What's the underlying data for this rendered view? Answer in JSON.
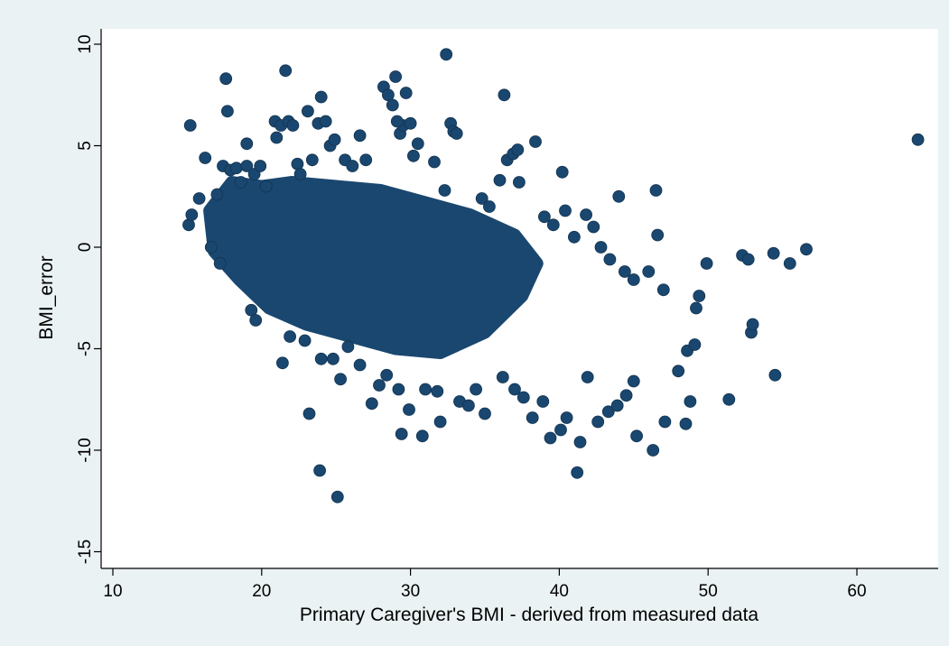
{
  "chart_data": {
    "type": "scatter",
    "title": "",
    "xlabel": "Primary Caregiver's BMI - derived from measured data",
    "ylabel": "BMI_error",
    "xlim": [
      10,
      65
    ],
    "ylim": [
      -16.5,
      10.5
    ],
    "xticks": [
      "10",
      "20",
      "30",
      "40",
      "50",
      "60"
    ],
    "yticks": [
      "10",
      "5",
      "0",
      "-5",
      "-10",
      "-15"
    ],
    "grid": false,
    "legend": "none",
    "colors": {
      "marker": "#1a476f",
      "plot_bg": "#ffffff",
      "page_bg": "#eaf2f3"
    },
    "dense_region": [
      [
        16.5,
        1.8
      ],
      [
        18.0,
        3.2
      ],
      [
        20.0,
        3.0
      ],
      [
        22.0,
        3.2
      ],
      [
        25.0,
        3.0
      ],
      [
        28.0,
        2.8
      ],
      [
        31.0,
        2.2
      ],
      [
        34.0,
        1.6
      ],
      [
        37.0,
        0.6
      ],
      [
        38.5,
        -0.8
      ],
      [
        37.5,
        -2.4
      ],
      [
        35.0,
        -4.2
      ],
      [
        32.0,
        -5.2
      ],
      [
        29.0,
        -5.0
      ],
      [
        26.0,
        -4.4
      ],
      [
        23.0,
        -3.8
      ],
      [
        20.5,
        -3.0
      ],
      [
        18.5,
        -1.6
      ],
      [
        16.8,
        -0.2
      ]
    ],
    "points": [
      [
        15.2,
        6.0
      ],
      [
        15.1,
        1.1
      ],
      [
        15.3,
        1.6
      ],
      [
        15.8,
        2.4
      ],
      [
        16.2,
        4.4
      ],
      [
        16.6,
        0.0
      ],
      [
        17.0,
        2.6
      ],
      [
        17.2,
        -0.8
      ],
      [
        17.6,
        8.3
      ],
      [
        17.7,
        6.7
      ],
      [
        17.4,
        4.0
      ],
      [
        17.9,
        3.8
      ],
      [
        18.3,
        3.9
      ],
      [
        18.6,
        3.2
      ],
      [
        19.0,
        4.0
      ],
      [
        19.0,
        5.1
      ],
      [
        19.5,
        3.6
      ],
      [
        19.9,
        4.0
      ],
      [
        19.3,
        -3.1
      ],
      [
        19.6,
        -3.6
      ],
      [
        20.3,
        3.0
      ],
      [
        21.0,
        5.4
      ],
      [
        20.9,
        6.2
      ],
      [
        21.3,
        6.0
      ],
      [
        21.6,
        8.7
      ],
      [
        21.8,
        6.2
      ],
      [
        22.1,
        6.0
      ],
      [
        21.4,
        -5.7
      ],
      [
        21.9,
        -4.4
      ],
      [
        22.4,
        4.1
      ],
      [
        22.6,
        3.6
      ],
      [
        23.1,
        6.7
      ],
      [
        23.4,
        4.3
      ],
      [
        23.8,
        6.1
      ],
      [
        24.0,
        7.4
      ],
      [
        24.3,
        6.2
      ],
      [
        22.9,
        -4.6
      ],
      [
        23.2,
        -8.2
      ],
      [
        23.9,
        -11.0
      ],
      [
        24.0,
        -5.5
      ],
      [
        24.6,
        5.0
      ],
      [
        24.9,
        5.3
      ],
      [
        25.6,
        4.3
      ],
      [
        26.1,
        4.0
      ],
      [
        26.6,
        5.5
      ],
      [
        27.0,
        4.3
      ],
      [
        25.1,
        -12.3
      ],
      [
        25.3,
        -6.5
      ],
      [
        24.8,
        -5.5
      ],
      [
        25.8,
        -4.9
      ],
      [
        26.6,
        -5.8
      ],
      [
        27.4,
        -7.7
      ],
      [
        27.9,
        -6.8
      ],
      [
        28.2,
        7.9
      ],
      [
        28.5,
        7.5
      ],
      [
        29.0,
        8.4
      ],
      [
        28.8,
        7.0
      ],
      [
        29.3,
        5.6
      ],
      [
        29.5,
        6.0
      ],
      [
        29.7,
        7.6
      ],
      [
        29.1,
        6.2
      ],
      [
        30.0,
        6.1
      ],
      [
        30.5,
        5.1
      ],
      [
        30.2,
        4.5
      ],
      [
        28.4,
        -6.3
      ],
      [
        29.2,
        -7.0
      ],
      [
        29.4,
        -9.2
      ],
      [
        29.9,
        -8.0
      ],
      [
        30.8,
        -9.3
      ],
      [
        31.0,
        -7.0
      ],
      [
        31.6,
        4.2
      ],
      [
        32.3,
        2.8
      ],
      [
        32.4,
        9.5
      ],
      [
        32.7,
        6.1
      ],
      [
        32.9,
        5.7
      ],
      [
        33.1,
        5.6
      ],
      [
        32.0,
        -8.6
      ],
      [
        31.8,
        -7.1
      ],
      [
        33.3,
        -7.6
      ],
      [
        33.9,
        -7.8
      ],
      [
        34.4,
        -7.0
      ],
      [
        35.0,
        -8.2
      ],
      [
        34.8,
        2.4
      ],
      [
        35.3,
        2.0
      ],
      [
        36.0,
        3.3
      ],
      [
        36.3,
        7.5
      ],
      [
        36.5,
        4.3
      ],
      [
        36.9,
        4.6
      ],
      [
        37.2,
        4.8
      ],
      [
        37.3,
        3.2
      ],
      [
        36.2,
        -6.4
      ],
      [
        37.0,
        -7.0
      ],
      [
        37.6,
        -7.4
      ],
      [
        38.2,
        -8.4
      ],
      [
        38.9,
        -7.6
      ],
      [
        38.4,
        5.2
      ],
      [
        39.0,
        1.5
      ],
      [
        39.6,
        1.1
      ],
      [
        40.2,
        3.7
      ],
      [
        40.4,
        1.8
      ],
      [
        41.0,
        0.5
      ],
      [
        41.8,
        1.6
      ],
      [
        39.4,
        -9.4
      ],
      [
        40.1,
        -9.0
      ],
      [
        40.5,
        -8.4
      ],
      [
        41.2,
        -11.1
      ],
      [
        41.4,
        -9.6
      ],
      [
        41.9,
        -6.4
      ],
      [
        42.3,
        1.0
      ],
      [
        42.8,
        0.0
      ],
      [
        43.4,
        -0.6
      ],
      [
        44.0,
        2.5
      ],
      [
        44.4,
        -1.2
      ],
      [
        45.0,
        -1.6
      ],
      [
        42.6,
        -8.6
      ],
      [
        43.3,
        -8.1
      ],
      [
        43.9,
        -7.8
      ],
      [
        44.5,
        -7.3
      ],
      [
        45.0,
        -6.6
      ],
      [
        45.2,
        -9.3
      ],
      [
        46.0,
        -1.2
      ],
      [
        46.5,
        2.8
      ],
      [
        46.6,
        0.6
      ],
      [
        47.0,
        -2.1
      ],
      [
        47.1,
        -8.6
      ],
      [
        46.3,
        -10.0
      ],
      [
        48.0,
        -6.1
      ],
      [
        48.5,
        -8.7
      ],
      [
        48.8,
        -7.6
      ],
      [
        48.6,
        -5.1
      ],
      [
        49.1,
        -4.8
      ],
      [
        49.4,
        -2.4
      ],
      [
        49.2,
        -3.0
      ],
      [
        49.9,
        -0.8
      ],
      [
        51.4,
        -7.5
      ],
      [
        52.3,
        -0.4
      ],
      [
        52.9,
        -4.2
      ],
      [
        53.0,
        -3.8
      ],
      [
        52.7,
        -0.6
      ],
      [
        54.4,
        -0.3
      ],
      [
        54.5,
        -6.3
      ],
      [
        55.5,
        -0.8
      ],
      [
        56.6,
        -0.1
      ],
      [
        64.1,
        5.3
      ]
    ]
  }
}
